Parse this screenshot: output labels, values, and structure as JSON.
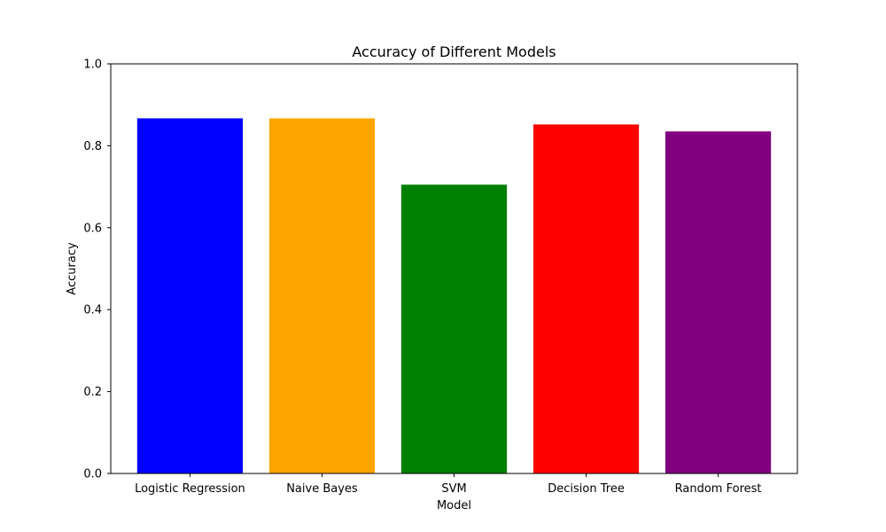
{
  "chart_data": {
    "type": "bar",
    "title": "Accuracy of Different Models",
    "xlabel": "Model",
    "ylabel": "Accuracy",
    "ylim": [
      0,
      1.0
    ],
    "yticks": [
      0.0,
      0.2,
      0.4,
      0.6,
      0.8,
      1.0
    ],
    "ytick_labels": [
      "0.0",
      "0.2",
      "0.4",
      "0.6",
      "0.8",
      "1.0"
    ],
    "categories": [
      "Logistic Regression",
      "Naive Bayes",
      "SVM",
      "Decision Tree",
      "Random Forest"
    ],
    "values": [
      0.867,
      0.867,
      0.705,
      0.852,
      0.835
    ],
    "colors": [
      "#0000ff",
      "#ffa500",
      "#008000",
      "#ff0000",
      "#800080"
    ],
    "grid": false,
    "legend": "none"
  }
}
